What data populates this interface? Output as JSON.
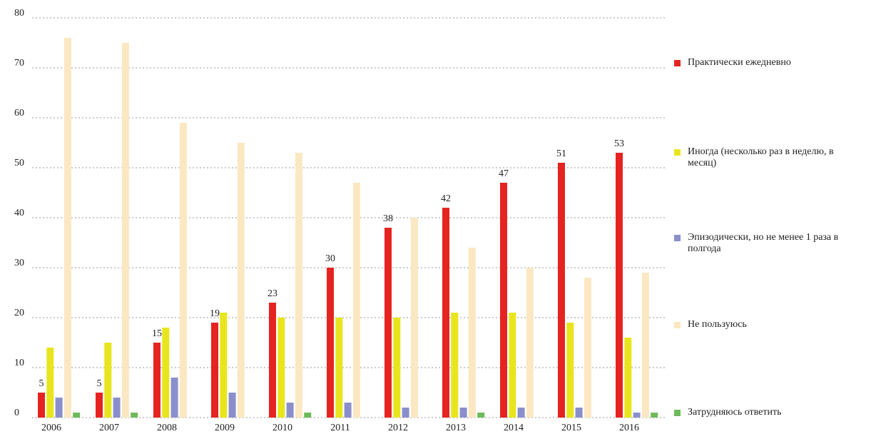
{
  "chart_data": {
    "type": "bar",
    "categories": [
      "2006",
      "2007",
      "2008",
      "2009",
      "2010",
      "2011",
      "2012",
      "2013",
      "2014",
      "2015",
      "2016"
    ],
    "series": [
      {
        "name": "Практически ежедневно",
        "color": "#e52421",
        "values": [
          5,
          5,
          15,
          19,
          23,
          30,
          38,
          42,
          47,
          51,
          53
        ],
        "show_labels": true
      },
      {
        "name": "Иногда (несколько раз в неделю, в месяц)",
        "color": "#e8e51e",
        "values": [
          14,
          15,
          18,
          21,
          20,
          20,
          20,
          21,
          21,
          19,
          16
        ]
      },
      {
        "name": "Эпизодически, но не менее 1 раза в полгода",
        "color": "#8a8fcc",
        "values": [
          4,
          4,
          8,
          5,
          3,
          3,
          2,
          2,
          2,
          2,
          1
        ]
      },
      {
        "name": "Не пользуюсь",
        "color": "#fbe8c2",
        "values": [
          76,
          75,
          59,
          55,
          53,
          47,
          40,
          34,
          30,
          28,
          29
        ]
      },
      {
        "name": "Затрудняюсь ответить",
        "color": "#6dbb5a",
        "values": [
          1,
          1,
          0,
          0,
          1,
          0,
          0,
          1,
          0,
          0,
          1
        ]
      }
    ],
    "ylim": [
      0,
      80
    ],
    "yticks": [
      0,
      10,
      20,
      30,
      40,
      50,
      60,
      70,
      80
    ],
    "grid": true,
    "legend": "right"
  }
}
